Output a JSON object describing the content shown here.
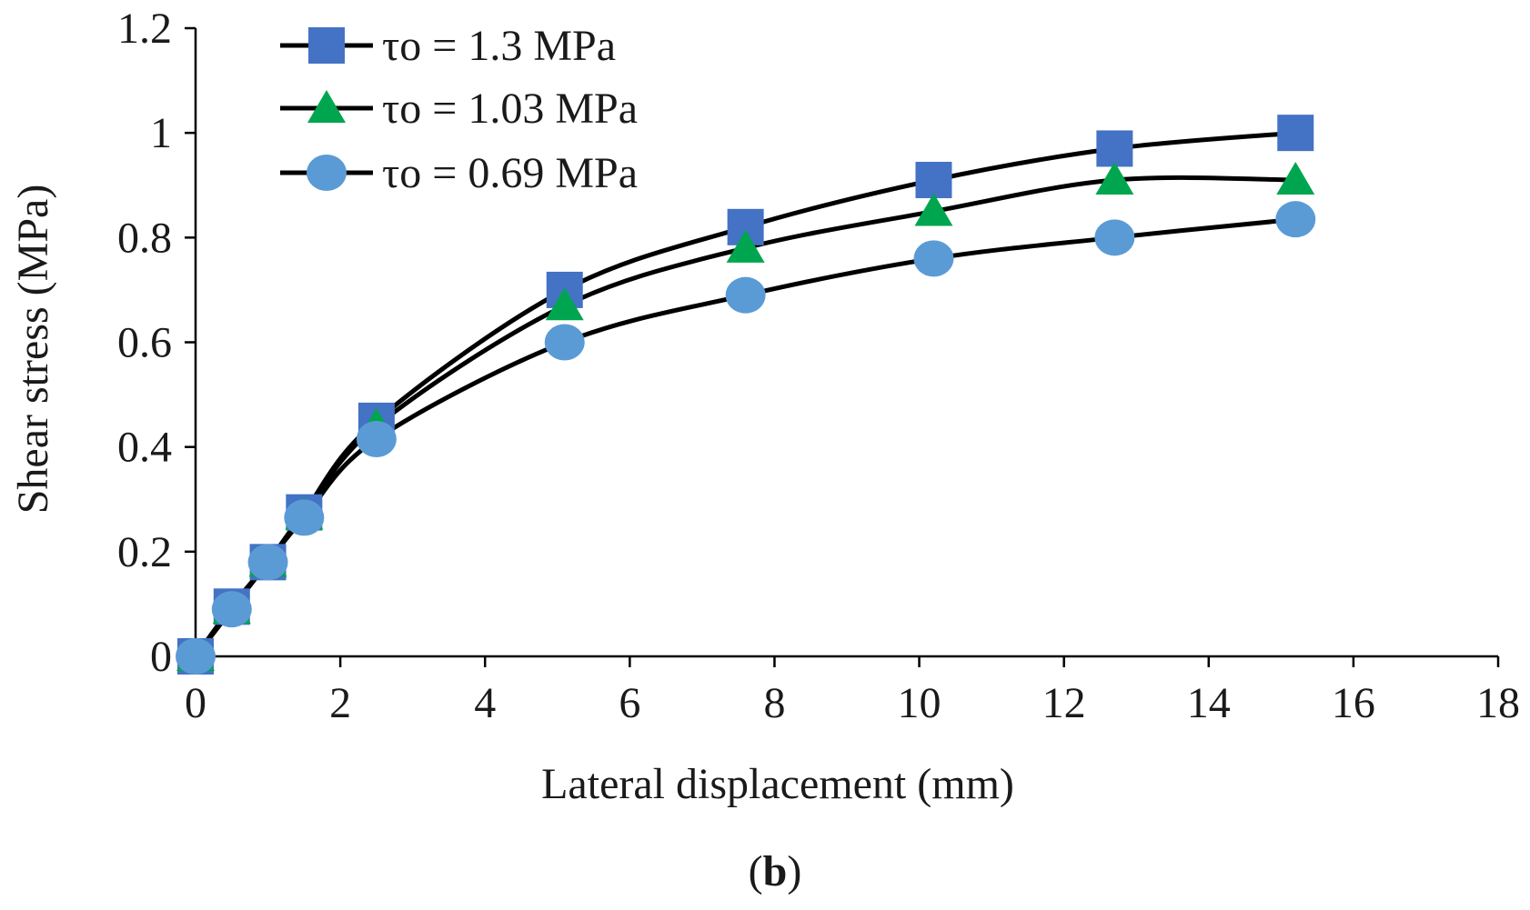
{
  "chart_data": {
    "type": "line",
    "title": "",
    "xlabel": "Lateral displacement (mm)",
    "ylabel": "Shear stress (MPa)",
    "xlim": [
      0,
      18
    ],
    "ylim": [
      0,
      1.2
    ],
    "x_ticks": [
      "0",
      "2",
      "4",
      "6",
      "8",
      "10",
      "12",
      "14",
      "16",
      "18"
    ],
    "y_ticks": [
      "0",
      "0.2",
      "0.4",
      "0.6",
      "0.8",
      "1",
      "1.2"
    ],
    "grid": false,
    "legend_position": "top-left",
    "line_color": "#000000",
    "series": [
      {
        "name": "τo = 1.3 MPa",
        "marker": "square",
        "color": "#4472C4",
        "x": [
          0,
          0.5,
          1.0,
          1.5,
          2.5,
          5.1,
          7.6,
          10.2,
          12.7,
          15.2
        ],
        "y": [
          0,
          0.095,
          0.18,
          0.275,
          0.45,
          0.7,
          0.82,
          0.91,
          0.97,
          1.0
        ]
      },
      {
        "name": "τo = 1.03 MPa",
        "marker": "triangle",
        "color": "#00A64F",
        "x": [
          0,
          0.5,
          1.0,
          1.5,
          2.5,
          5.1,
          7.6,
          10.2,
          12.7,
          15.2
        ],
        "y": [
          0,
          0.09,
          0.18,
          0.27,
          0.44,
          0.67,
          0.78,
          0.85,
          0.91,
          0.91
        ]
      },
      {
        "name": "τo = 0.69 MPa",
        "marker": "circle",
        "color": "#5B9BD5",
        "x": [
          0,
          0.5,
          1.0,
          1.5,
          2.5,
          5.1,
          7.6,
          10.2,
          12.7,
          15.2
        ],
        "y": [
          0,
          0.09,
          0.18,
          0.265,
          0.415,
          0.6,
          0.69,
          0.76,
          0.8,
          0.835
        ]
      }
    ]
  },
  "caption": {
    "open": "(",
    "letter": "b",
    "close": ")"
  }
}
